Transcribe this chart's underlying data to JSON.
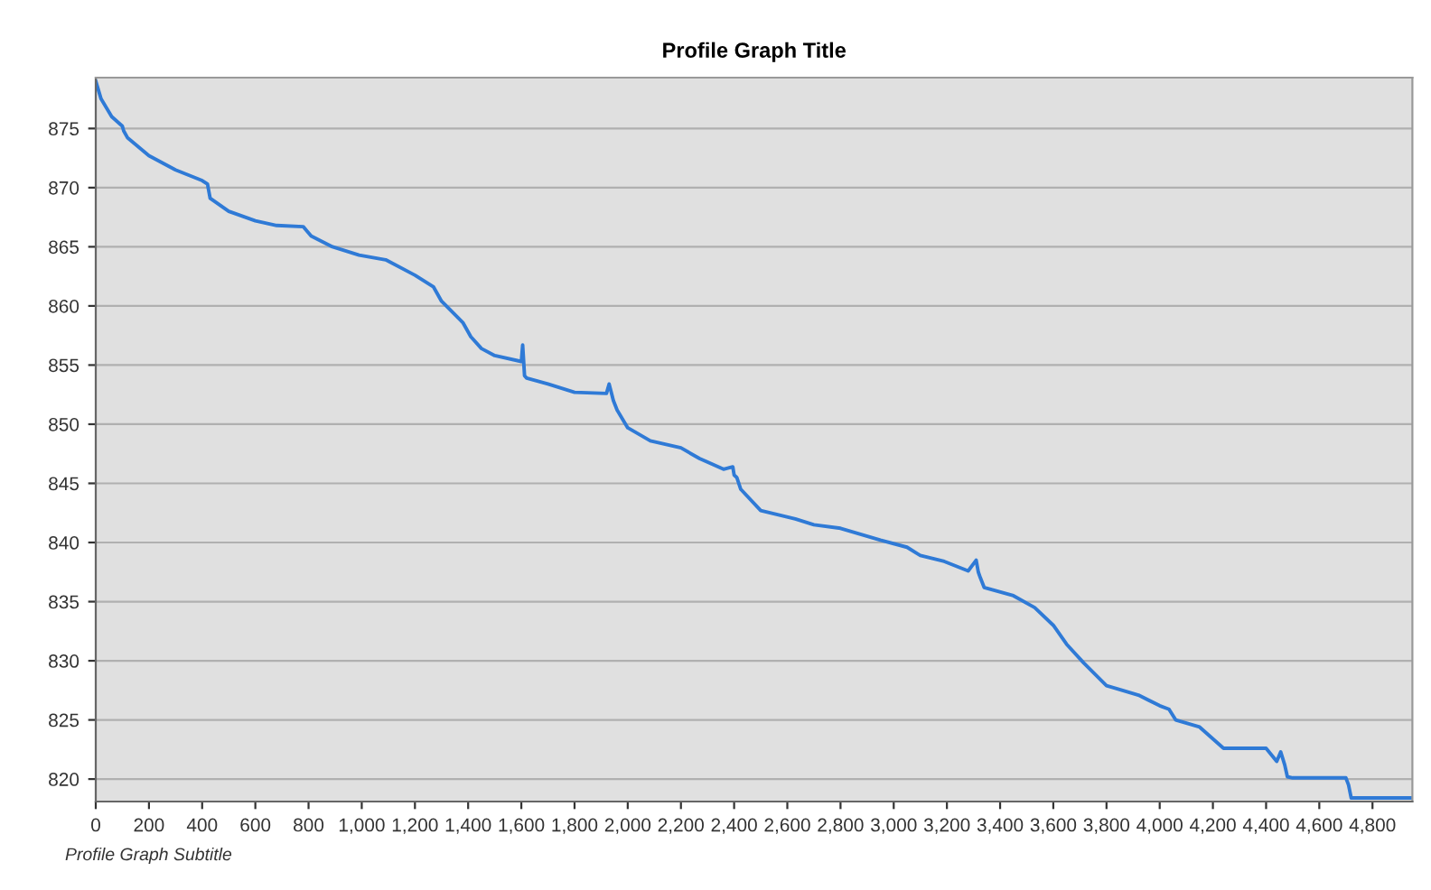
{
  "chart_data": {
    "type": "line",
    "title": "Profile Graph Title",
    "annotations": [
      "Profile Graph Subtitle"
    ],
    "series": [
      {
        "color": "#2f7ad6",
        "x": [
          0,
          20,
          60,
          100,
          105,
          120,
          200,
          300,
          400,
          420,
          430,
          500,
          600,
          680,
          780,
          810,
          890,
          990,
          1090,
          1200,
          1270,
          1300,
          1380,
          1410,
          1450,
          1500,
          1600,
          1605,
          1612,
          1620,
          1700,
          1800,
          1920,
          1930,
          1938,
          1946,
          1960,
          2000,
          2085,
          2200,
          2270,
          2360,
          2395,
          2400,
          2410,
          2425,
          2500,
          2630,
          2700,
          2800,
          2950,
          3050,
          3100,
          3190,
          3280,
          3310,
          3318,
          3326,
          3340,
          3450,
          3530,
          3600,
          3650,
          3715,
          3800,
          3920,
          4000,
          4035,
          4060,
          4150,
          4240,
          4400,
          4440,
          4455,
          4470,
          4480,
          4500,
          4700,
          4710,
          4720,
          4950
        ],
        "values": [
          879,
          877.5,
          876,
          875.2,
          874.8,
          874.2,
          872.7,
          871.5,
          870.6,
          870.3,
          869.1,
          868.0,
          867.2,
          866.8,
          866.7,
          865.9,
          865.0,
          864.3,
          863.9,
          862.6,
          861.6,
          860.4,
          858.6,
          857.4,
          856.4,
          855.8,
          855.3,
          856.7,
          854.1,
          853.9,
          853.4,
          852.7,
          852.6,
          853.4,
          852.7,
          852.0,
          851.2,
          849.7,
          848.6,
          848.0,
          847.1,
          846.2,
          846.4,
          845.7,
          845.5,
          844.5,
          842.7,
          842.0,
          841.5,
          841.2,
          840.2,
          839.6,
          838.9,
          838.4,
          837.6,
          838.5,
          837.5,
          837.0,
          836.2,
          835.5,
          834.5,
          833.0,
          831.4,
          829.8,
          827.9,
          827.1,
          826.2,
          825.9,
          825.0,
          824.4,
          822.6,
          822.6,
          821.5,
          822.3,
          821.2,
          820.2,
          820.1,
          820.1,
          819.5,
          818.4,
          818.4
        ]
      }
    ],
    "xlim": [
      0,
      4950
    ],
    "ylim": [
      818.1,
      879.3
    ],
    "xticks": [
      {
        "value": 0,
        "label": "0"
      },
      {
        "value": 200,
        "label": "200"
      },
      {
        "value": 400,
        "label": "400"
      },
      {
        "value": 600,
        "label": "600"
      },
      {
        "value": 800,
        "label": "800"
      },
      {
        "value": 1000,
        "label": "1,000"
      },
      {
        "value": 1200,
        "label": "1,200"
      },
      {
        "value": 1400,
        "label": "1,400"
      },
      {
        "value": 1600,
        "label": "1,600"
      },
      {
        "value": 1800,
        "label": "1,800"
      },
      {
        "value": 2000,
        "label": "2,000"
      },
      {
        "value": 2200,
        "label": "2,200"
      },
      {
        "value": 2400,
        "label": "2,400"
      },
      {
        "value": 2600,
        "label": "2,600"
      },
      {
        "value": 2800,
        "label": "2,800"
      },
      {
        "value": 3000,
        "label": "3,000"
      },
      {
        "value": 3200,
        "label": "3,200"
      },
      {
        "value": 3400,
        "label": "3,400"
      },
      {
        "value": 3600,
        "label": "3,600"
      },
      {
        "value": 3800,
        "label": "3,800"
      },
      {
        "value": 4000,
        "label": "4,000"
      },
      {
        "value": 4200,
        "label": "4,200"
      },
      {
        "value": 4400,
        "label": "4,400"
      },
      {
        "value": 4600,
        "label": "4,600"
      },
      {
        "value": 4800,
        "label": "4,800"
      }
    ],
    "yticks": [
      820,
      825,
      830,
      835,
      840,
      845,
      850,
      855,
      860,
      865,
      870,
      875
    ],
    "grid": "y",
    "legend": false
  }
}
